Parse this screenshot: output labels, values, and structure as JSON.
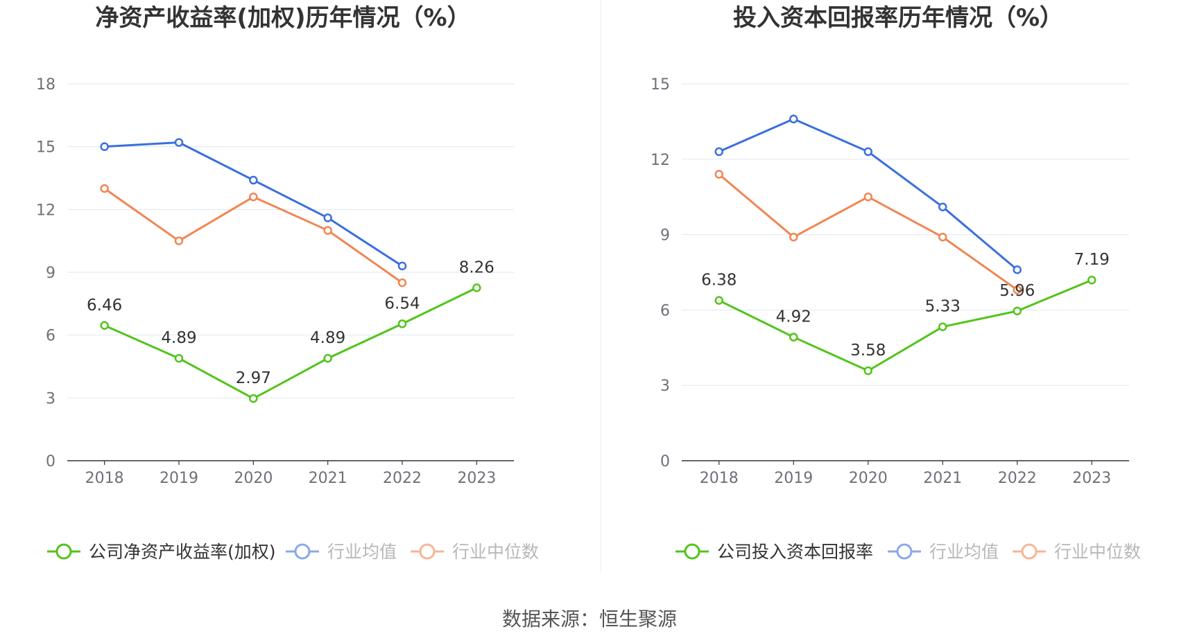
{
  "source_text": "数据来源：恒生聚源",
  "chart_data": [
    {
      "type": "line",
      "title": "净资产收益率(加权)历年情况（%）",
      "categories": [
        "2018",
        "2019",
        "2020",
        "2021",
        "2022",
        "2023"
      ],
      "ylim": [
        0,
        18
      ],
      "yticks": [
        0,
        3,
        6,
        9,
        12,
        15,
        18
      ],
      "grid": true,
      "legend_position": "bottom",
      "series": [
        {
          "name": "公司净资产收益率(加权)",
          "color": "#52c41a",
          "values": [
            6.46,
            4.89,
            2.97,
            4.89,
            6.54,
            8.26
          ],
          "labels": [
            "6.46",
            "4.89",
            "2.97",
            "4.89",
            "6.54",
            "8.26"
          ]
        },
        {
          "name": "行业均值",
          "color": "#3a6fdc",
          "values": [
            15.0,
            15.2,
            13.4,
            11.6,
            9.3,
            null
          ]
        },
        {
          "name": "行业中位数",
          "color": "#f28552",
          "values": [
            13.0,
            10.5,
            12.6,
            11.0,
            8.5,
            null
          ]
        }
      ]
    },
    {
      "type": "line",
      "title": "投入资本回报率历年情况（%）",
      "categories": [
        "2018",
        "2019",
        "2020",
        "2021",
        "2022",
        "2023"
      ],
      "ylim": [
        0,
        15
      ],
      "yticks": [
        0,
        3,
        6,
        9,
        12,
        15
      ],
      "grid": true,
      "legend_position": "bottom",
      "series": [
        {
          "name": "公司投入资本回报率",
          "color": "#52c41a",
          "values": [
            6.38,
            4.92,
            3.58,
            5.33,
            5.96,
            7.19
          ],
          "labels": [
            "6.38",
            "4.92",
            "3.58",
            "5.33",
            "5.96",
            "7.19"
          ]
        },
        {
          "name": "行业均值",
          "color": "#3a6fdc",
          "values": [
            12.3,
            13.6,
            12.3,
            10.1,
            7.6,
            null
          ]
        },
        {
          "name": "行业中位数",
          "color": "#f28552",
          "values": [
            11.4,
            8.9,
            10.5,
            8.9,
            6.8,
            null
          ]
        }
      ]
    }
  ]
}
